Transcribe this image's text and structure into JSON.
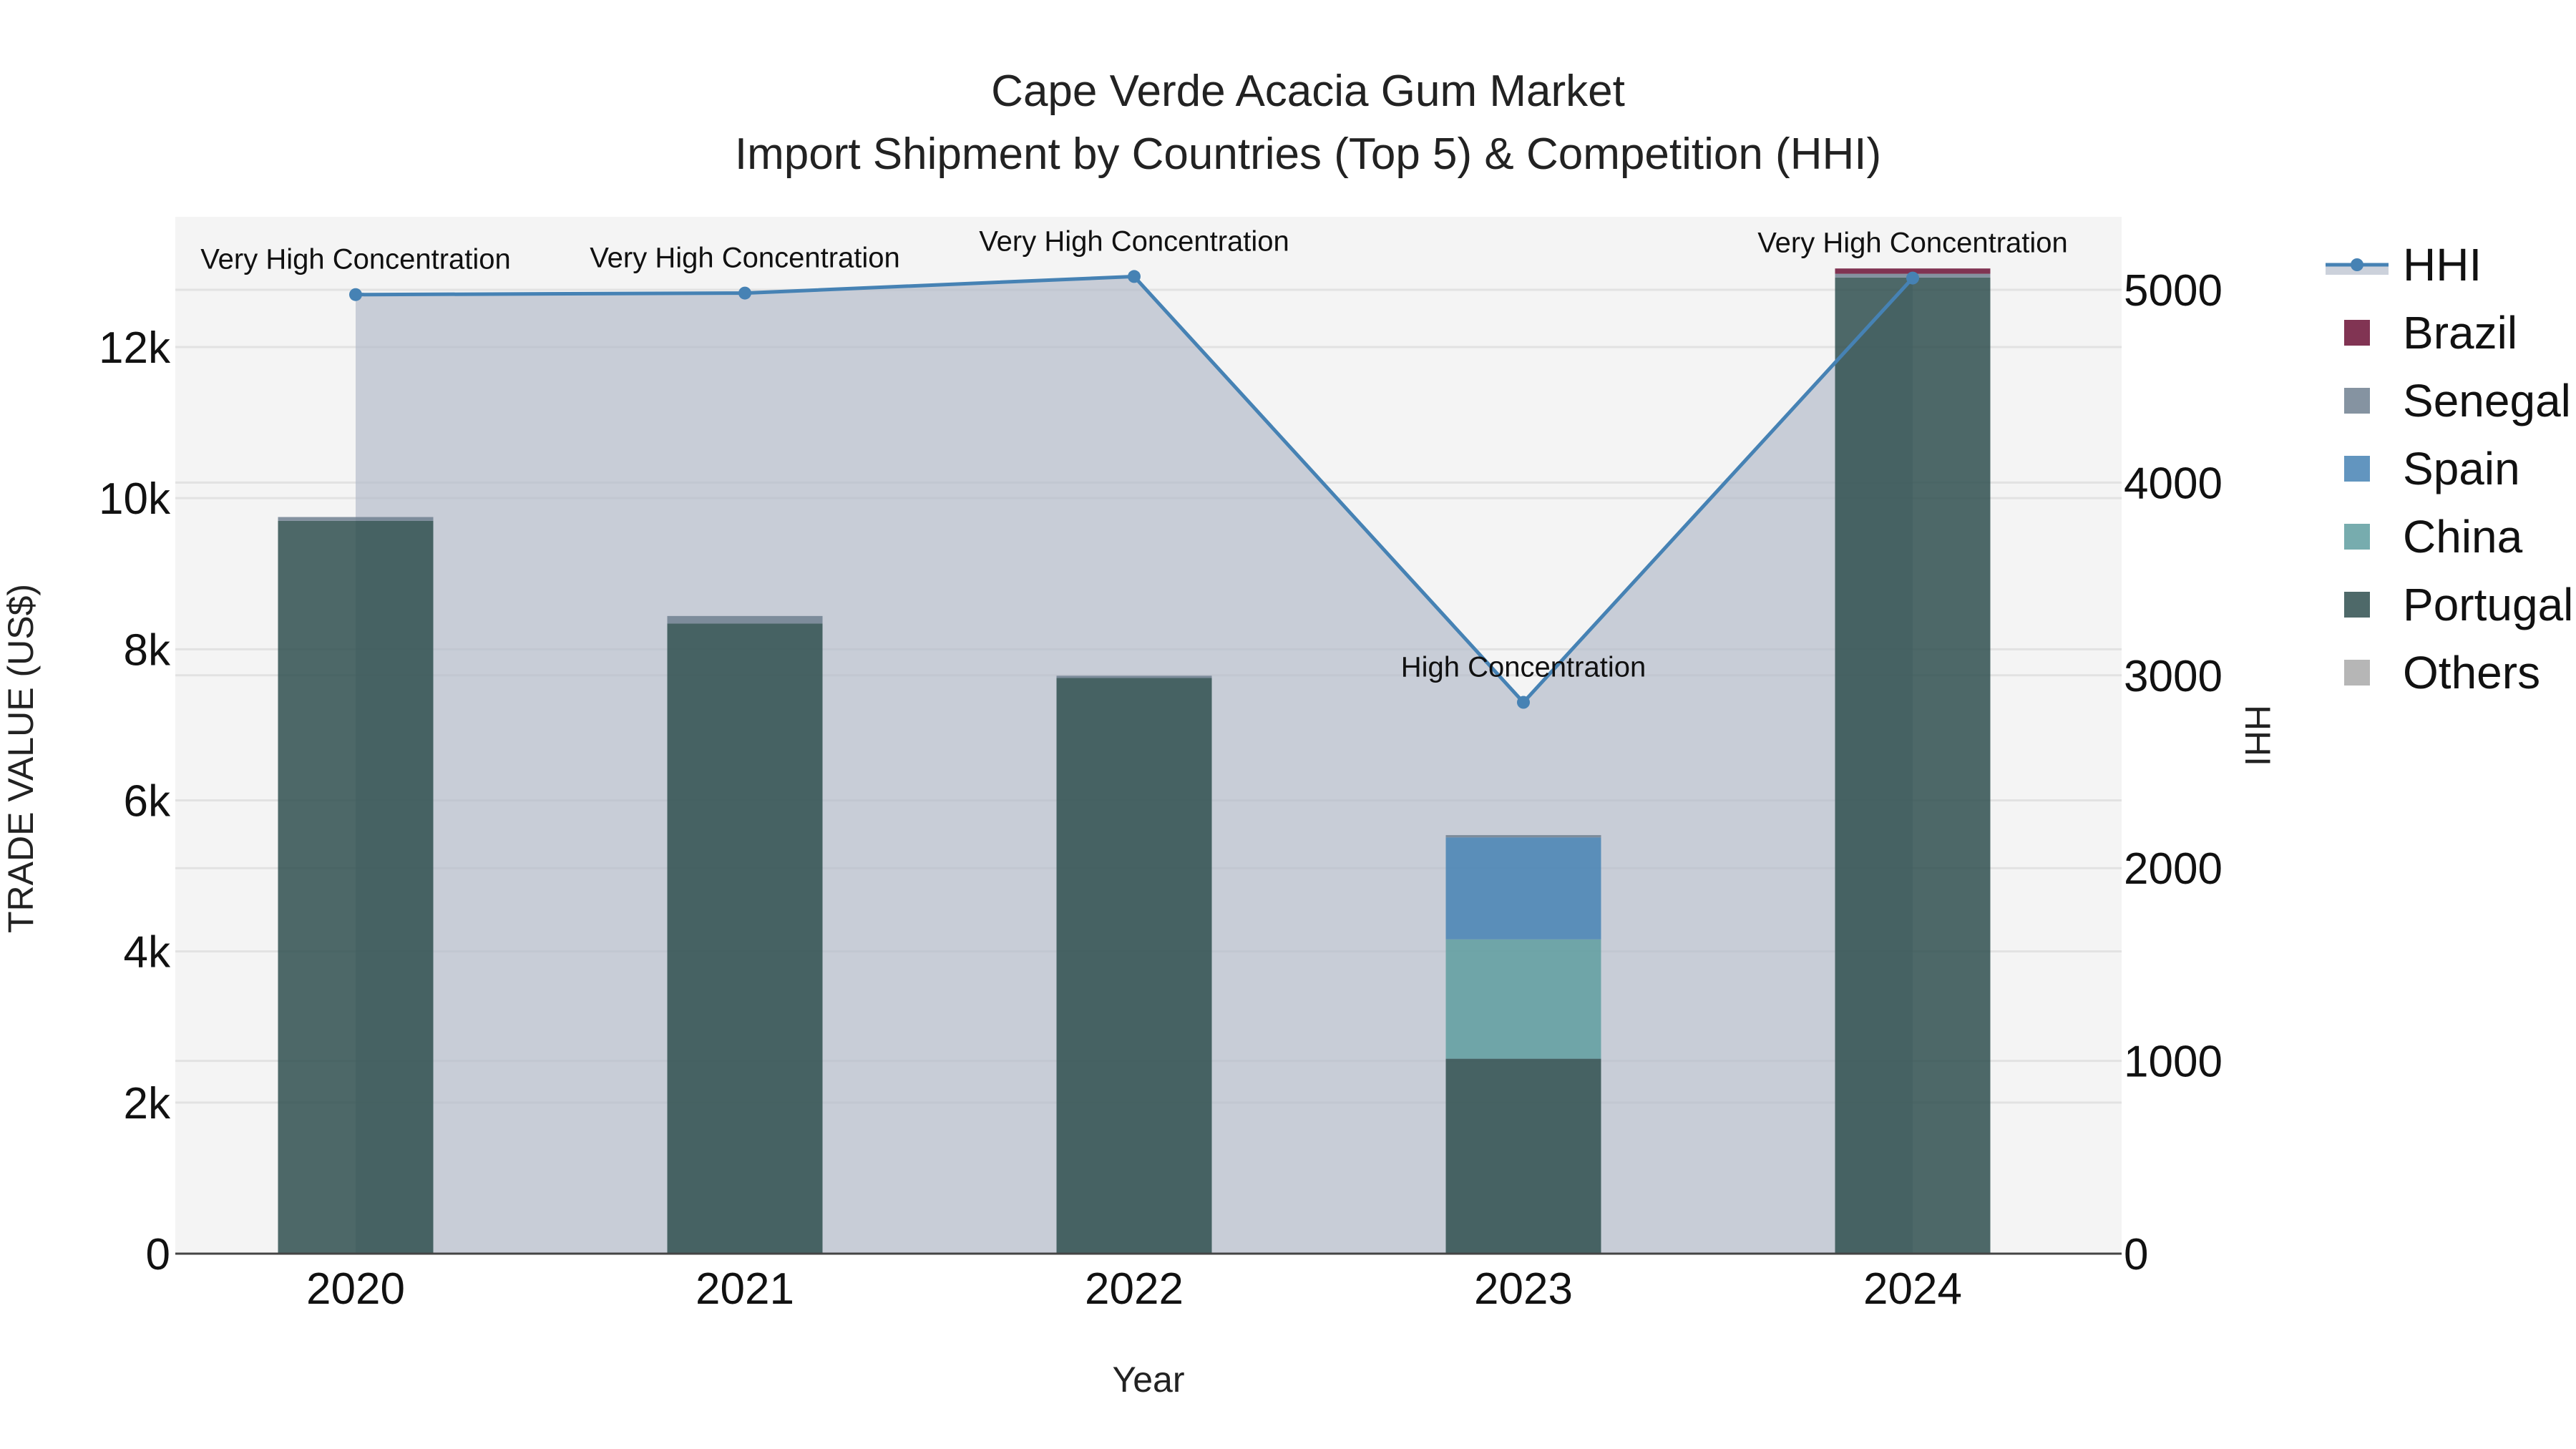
{
  "chart_data": {
    "type": "bar",
    "stacked": true,
    "title": "Cape Verde Acacia Gum Market",
    "subtitle": "Import Shipment by Countries (Top 5) & Competition (HHI)",
    "xlabel": "Year",
    "ylabel": "TRADE VALUE (US$)",
    "y2label": "HHI",
    "categories": [
      "2020",
      "2021",
      "2022",
      "2023",
      "2024"
    ],
    "ylim": [
      0,
      13700
    ],
    "y2lim": [
      0,
      5380
    ],
    "yticks": [
      0,
      2000,
      4000,
      6000,
      8000,
      10000,
      12000
    ],
    "ytick_labels": [
      "0",
      "2k",
      "4k",
      "6k",
      "8k",
      "10k",
      "12k"
    ],
    "y2ticks": [
      0,
      1000,
      2000,
      3000,
      4000,
      5000
    ],
    "y2tick_labels": [
      "0",
      "1000",
      "2000",
      "3000",
      "4000",
      "5000"
    ],
    "grid": true,
    "legend_position": "right",
    "series": [
      {
        "name": "Portugal",
        "color": "#2F4F4F",
        "values": [
          9700,
          8340,
          7620,
          2580,
          12920
        ]
      },
      {
        "name": "China",
        "color": "#5F9EA0",
        "values": [
          0,
          0,
          0,
          1580,
          0
        ]
      },
      {
        "name": "Spain",
        "color": "#4682B4",
        "values": [
          0,
          0,
          0,
          1350,
          0
        ]
      },
      {
        "name": "Senegal",
        "color": "#708090",
        "values": [
          50,
          100,
          30,
          30,
          50
        ]
      },
      {
        "name": "Brazil",
        "color": "#6B1035",
        "values": [
          0,
          0,
          0,
          0,
          70
        ]
      },
      {
        "name": "Others",
        "color": "#A9A9A9",
        "values": [
          0,
          0,
          0,
          0,
          0
        ]
      }
    ],
    "line_series": {
      "name": "HHI",
      "axis": "y2",
      "color": "#4682B4",
      "fill_color": "#B0B8C8",
      "values": [
        4975,
        4983,
        5069,
        2860,
        5061
      ],
      "labels": [
        "Very High Concentration",
        "Very High Concentration",
        "Very High Concentration",
        "High Concentration",
        "Very High Concentration"
      ]
    },
    "legend": [
      "HHI",
      "Brazil",
      "Senegal",
      "Spain",
      "China",
      "Portugal",
      "Others"
    ]
  }
}
